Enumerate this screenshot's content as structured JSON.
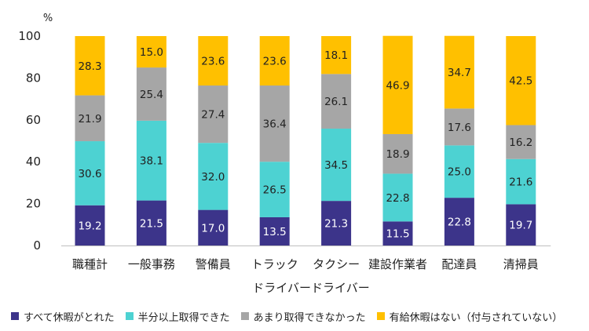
{
  "chart_data": {
    "type": "bar",
    "stacked": true,
    "unit_label": "%",
    "xlabel": "ドライバードライバー",
    "ylabel": "",
    "ylim": [
      0,
      100
    ],
    "yticks": [
      0,
      20,
      40,
      60,
      80,
      100
    ],
    "grid": false,
    "legend_position": "bottom",
    "categories": [
      "職種計",
      "一般事務",
      "警備員",
      "トラック",
      "タクシー",
      "建設作業者",
      "配達員",
      "清掃員"
    ],
    "series": [
      {
        "name": "すべて休暇がとれた",
        "color": "#3c348a",
        "label_color": "#ffffff",
        "values": [
          19.2,
          21.5,
          17.0,
          13.5,
          21.3,
          11.5,
          22.8,
          19.7
        ],
        "labels": [
          "19.2",
          "21.5",
          "17.0",
          "13.5",
          "21.3",
          "11.5",
          "22.8",
          "19.7"
        ]
      },
      {
        "name": "半分以上取得できた",
        "color": "#4dd2d2",
        "label_color": "#222222",
        "values": [
          30.6,
          38.1,
          32.0,
          26.5,
          34.5,
          22.8,
          25.0,
          21.6
        ],
        "labels": [
          "30.6",
          "38.1",
          "32.0",
          "26.5",
          "34.5",
          "22.8",
          "25.0",
          "21.6"
        ]
      },
      {
        "name": "あまり取得できなかった",
        "color": "#a6a6a6",
        "label_color": "#222222",
        "values": [
          21.9,
          25.4,
          27.4,
          36.4,
          26.1,
          18.9,
          17.6,
          16.2
        ],
        "labels": [
          "21.9",
          "25.4",
          "27.4",
          "36.4",
          "26.1",
          "18.9",
          "17.6",
          "16.2"
        ]
      },
      {
        "name": "有給休暇はない（付与されていない）",
        "color": "#ffc000",
        "label_color": "#222222",
        "values": [
          28.3,
          15.0,
          23.6,
          23.6,
          18.1,
          46.9,
          34.7,
          42.5
        ],
        "labels": [
          "28.3",
          "15.0",
          "23.6",
          "23.6",
          "18.1",
          "46.9",
          "34.7",
          "42.5"
        ]
      }
    ]
  }
}
